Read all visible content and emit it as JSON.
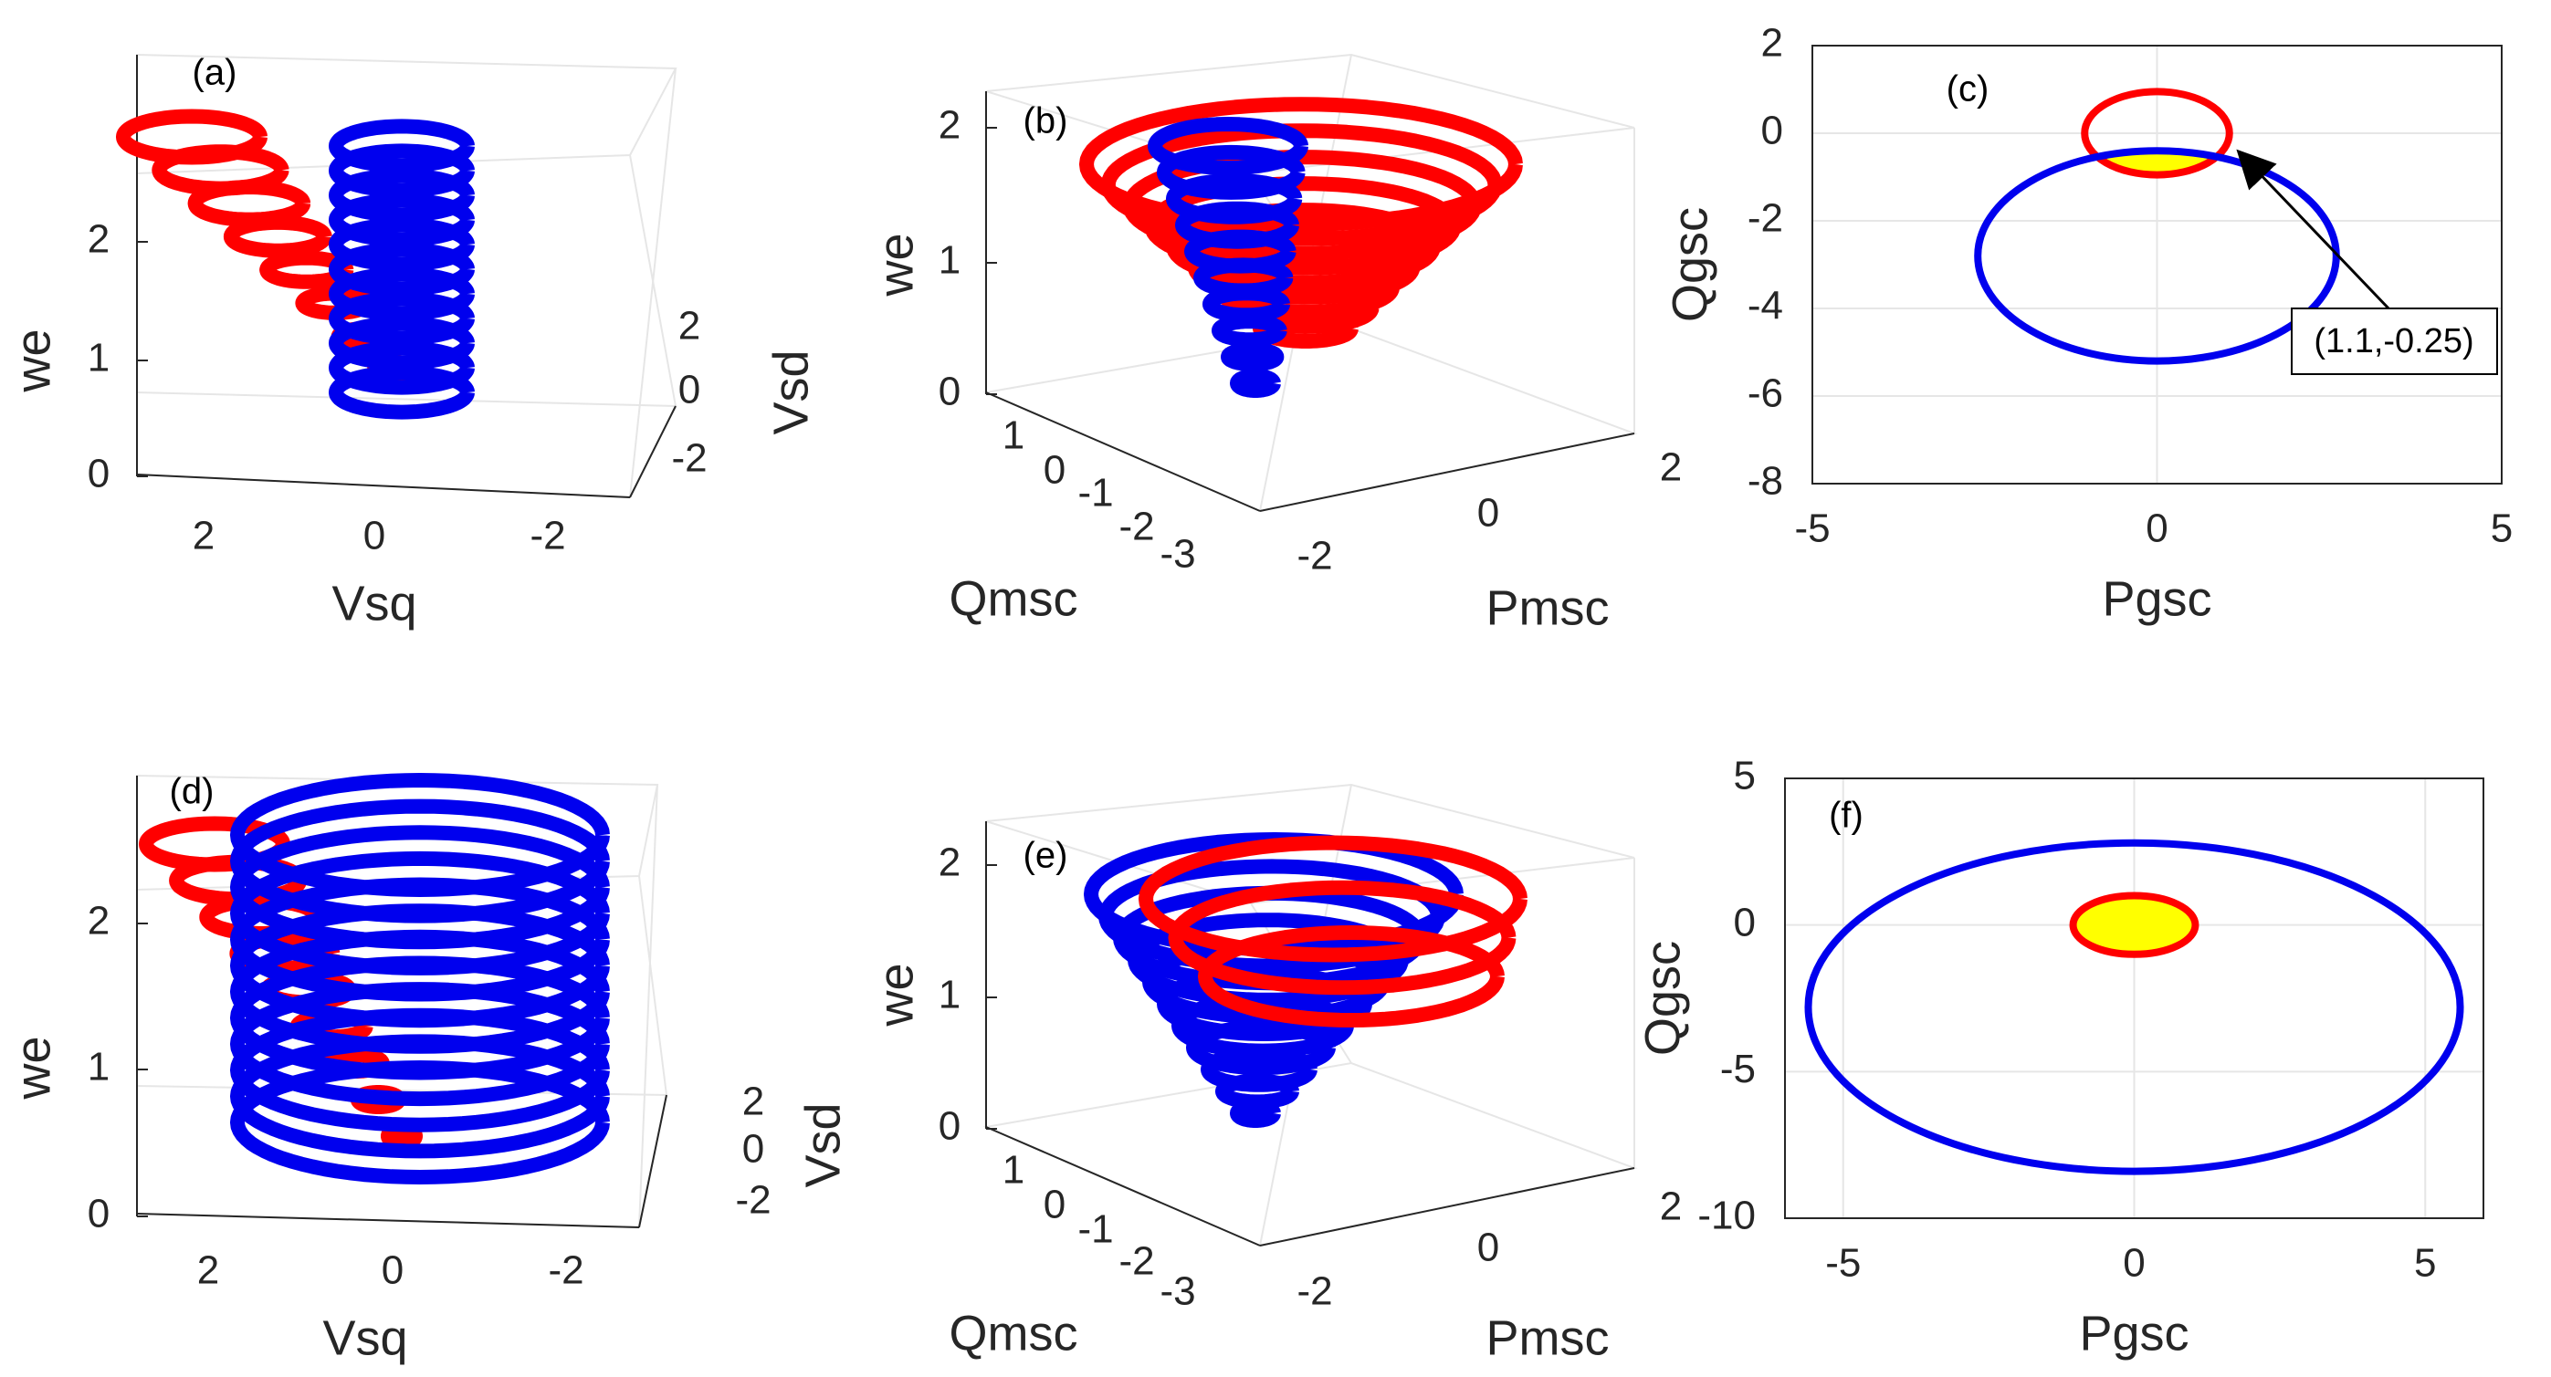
{
  "colors": {
    "red": "#ff0000",
    "blue": "#0000ee",
    "fill": "#ffff00",
    "axis": "#262626",
    "grid": "#e6e6e6"
  },
  "chart_data": [
    {
      "id": "a",
      "type": "line3d",
      "panel_label": "(a)",
      "xlabel": "Vsq",
      "ylabel": "Vsd",
      "zlabel": "we",
      "x_ticks": [
        "2",
        "0",
        "-2"
      ],
      "y_ticks": [
        "2",
        "0",
        "-2"
      ],
      "z_ticks": [
        "0",
        "1",
        "2"
      ],
      "series": [
        {
          "color": "red",
          "form": "cone",
          "turns": 8,
          "radius_top": 2.5,
          "radius_bottom": 0.3,
          "z_range": [
            1.0,
            2.8
          ]
        },
        {
          "color": "blue",
          "form": "cylinder",
          "turns": 11,
          "radius": 1.0,
          "z_range": [
            0.8,
            2.6
          ]
        }
      ]
    },
    {
      "id": "b",
      "type": "line3d",
      "panel_label": "(b)",
      "xlabel": "Qmsc",
      "ylabel": "Pmsc",
      "zlabel": "we",
      "x_ticks": [
        "1",
        "0",
        "-1",
        "-2",
        "-3"
      ],
      "y_ticks": [
        "-2",
        "0",
        "2"
      ],
      "z_ticks": [
        "0",
        "1",
        "2"
      ],
      "series": [
        {
          "color": "red",
          "form": "cone",
          "turns": 9,
          "radius_top": 2.3,
          "radius_bottom": 0.4,
          "z_range": [
            0.6,
            2.0
          ]
        },
        {
          "color": "blue",
          "form": "cone",
          "turns": 10,
          "radius_top": 1.0,
          "radius_bottom": 0.15,
          "z_range": [
            0.05,
            2.0
          ]
        }
      ]
    },
    {
      "id": "c",
      "type": "line",
      "panel_label": "(c)",
      "xlabel": "Pgsc",
      "ylabel": "Qgsc",
      "xlim": [
        -5,
        5
      ],
      "ylim": [
        -8,
        2
      ],
      "x_ticks": [
        "-5",
        "0",
        "5"
      ],
      "y_ticks": [
        "2",
        "0",
        "-2",
        "-4",
        "-6",
        "-8"
      ],
      "series": [
        {
          "color": "red",
          "shape": "ellipse",
          "center": [
            0,
            0
          ],
          "radii": [
            1.05,
            0.95
          ]
        },
        {
          "color": "blue",
          "shape": "ellipse",
          "center": [
            0,
            -2.8
          ],
          "radii": [
            2.6,
            2.4
          ]
        }
      ],
      "annotation": {
        "text": "(1.1,-0.25)",
        "point": [
          1.1,
          -0.25
        ]
      }
    },
    {
      "id": "d",
      "type": "line3d",
      "panel_label": "(d)",
      "xlabel": "Vsq",
      "ylabel": "Vsd",
      "zlabel": "we",
      "x_ticks": [
        "2",
        "0",
        "-2"
      ],
      "y_ticks": [
        "2",
        "0",
        "-2"
      ],
      "z_ticks": [
        "0",
        "1",
        "2"
      ],
      "series": [
        {
          "color": "red",
          "form": "cone",
          "turns": 9,
          "radius_top": 2.2,
          "radius_bottom": 0.2,
          "z_range": [
            0.4,
            2.6
          ]
        },
        {
          "color": "blue",
          "form": "cylinder",
          "turns": 12,
          "radius": 2.6,
          "z_range": [
            0.2,
            2.6
          ]
        }
      ]
    },
    {
      "id": "e",
      "type": "line3d",
      "panel_label": "(e)",
      "xlabel": "Qmsc",
      "ylabel": "Pmsc",
      "zlabel": "we",
      "x_ticks": [
        "1",
        "0",
        "-1",
        "-2",
        "-3"
      ],
      "y_ticks": [
        "-2",
        "0",
        "2"
      ],
      "z_ticks": [
        "0",
        "1",
        "2"
      ],
      "series": [
        {
          "color": "blue",
          "form": "cone",
          "turns": 11,
          "radius_top": 2.3,
          "radius_bottom": 0.1,
          "z_range": [
            0.05,
            2.0
          ]
        },
        {
          "color": "red",
          "form": "cone",
          "turns": 3,
          "radius_top": 2.3,
          "radius_bottom": 1.5,
          "z_range": [
            1.4,
            2.0
          ]
        }
      ]
    },
    {
      "id": "f",
      "type": "line",
      "panel_label": "(f)",
      "xlabel": "Pgsc",
      "ylabel": "Qgsc",
      "xlim": [
        -6,
        6
      ],
      "ylim": [
        -10,
        5
      ],
      "x_ticks": [
        "-5",
        "0",
        "5"
      ],
      "y_ticks": [
        "5",
        "0",
        "-5",
        "-10"
      ],
      "series": [
        {
          "color": "blue",
          "shape": "ellipse",
          "center": [
            0,
            -2.8
          ],
          "radii": [
            5.6,
            5.6
          ]
        },
        {
          "color": "red",
          "shape": "ellipse",
          "center": [
            0,
            0
          ],
          "radii": [
            1.05,
            1.0
          ]
        }
      ]
    }
  ]
}
